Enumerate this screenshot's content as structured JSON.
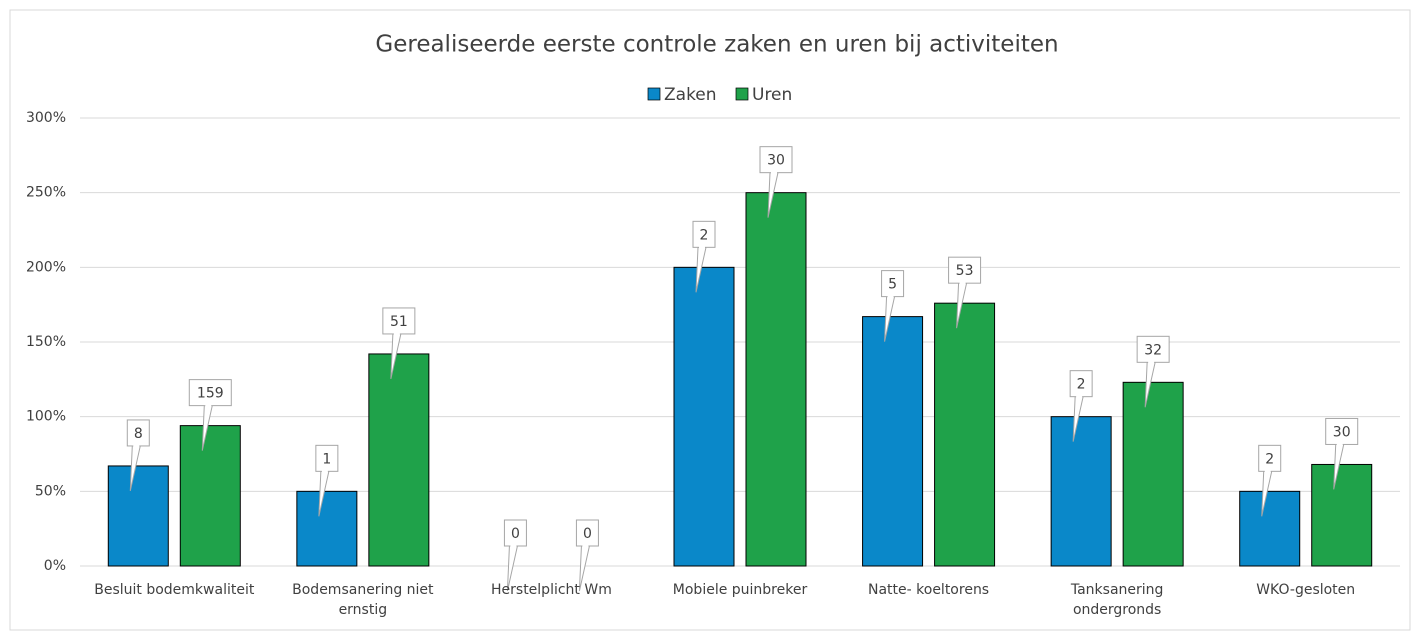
{
  "chart_data": {
    "type": "bar",
    "title": "Gerealiseerde eerste controle zaken en uren bij activiteiten",
    "categories": [
      "Besluit bodemkwaliteit",
      "Bodemsanering niet ernstig",
      "Herstelplicht Wm",
      "Mobiele puinbreker",
      "Natte- koeltorens",
      "Tanksanering ondergronds",
      "WKO-gesloten"
    ],
    "series": [
      {
        "name": "Zaken",
        "color": "#0a88c9",
        "values": [
          67,
          50,
          0,
          200,
          167,
          100,
          50
        ],
        "counts": [
          8,
          1,
          0,
          2,
          5,
          2,
          2
        ]
      },
      {
        "name": "Uren",
        "color": "#1fa24a",
        "values": [
          94,
          142,
          0,
          250,
          176,
          123,
          68
        ],
        "counts": [
          159,
          51,
          0,
          30,
          53,
          32,
          30
        ]
      }
    ],
    "ylim": [
      0,
      300
    ],
    "yticks": [
      {
        "value": 0,
        "label": "0%"
      },
      {
        "value": 50,
        "label": "50%"
      },
      {
        "value": 100,
        "label": "100%"
      },
      {
        "value": 150,
        "label": "150%"
      },
      {
        "value": 200,
        "label": "200%"
      },
      {
        "value": 250,
        "label": "250%"
      },
      {
        "value": 300,
        "label": "300%"
      }
    ],
    "grid": true,
    "legend": "top"
  }
}
